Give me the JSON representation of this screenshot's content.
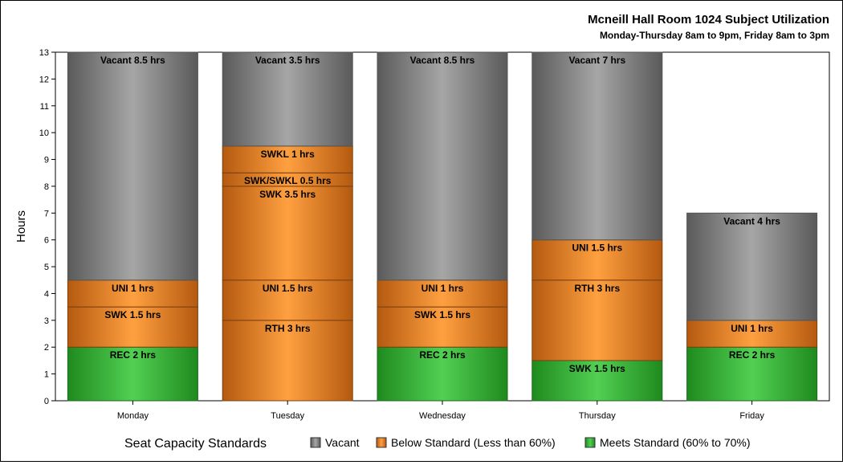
{
  "chart_data": {
    "type": "bar",
    "stacked": true,
    "title": "Mcneill Hall Room 1024 Subject Utilization",
    "subtitle": "Monday-Thursday 8am to 9pm, Friday 8am to 3pm",
    "xlabel": "",
    "ylabel": "Hours",
    "ylim": [
      0,
      13
    ],
    "yticks": [
      "0",
      "1",
      "2",
      "3",
      "4",
      "5",
      "6",
      "7",
      "8",
      "9",
      "10",
      "11",
      "12",
      "13"
    ],
    "categories": [
      "Monday",
      "Tuesday",
      "Wednesday",
      "Thursday",
      "Friday"
    ],
    "bars": [
      {
        "category": "Monday",
        "segments": [
          {
            "label": "REC 2 hrs",
            "value": 2,
            "standard": "meets"
          },
          {
            "label": "SWK 1.5 hrs",
            "value": 1.5,
            "standard": "below"
          },
          {
            "label": "UNI 1 hrs",
            "value": 1,
            "standard": "below"
          },
          {
            "label": "Vacant 8.5 hrs",
            "value": 8.5,
            "standard": "vacant"
          }
        ]
      },
      {
        "category": "Tuesday",
        "segments": [
          {
            "label": "RTH 3 hrs",
            "value": 3,
            "standard": "below"
          },
          {
            "label": "UNI 1.5 hrs",
            "value": 1.5,
            "standard": "below"
          },
          {
            "label": "SWK 3.5 hrs",
            "value": 3.5,
            "standard": "below"
          },
          {
            "label": "SWK/SWKL 0.5 hrs",
            "value": 0.5,
            "standard": "below"
          },
          {
            "label": "SWKL 1 hrs",
            "value": 1,
            "standard": "below"
          },
          {
            "label": "Vacant 3.5 hrs",
            "value": 3.5,
            "standard": "vacant"
          }
        ]
      },
      {
        "category": "Wednesday",
        "segments": [
          {
            "label": "REC 2 hrs",
            "value": 2,
            "standard": "meets"
          },
          {
            "label": "SWK 1.5 hrs",
            "value": 1.5,
            "standard": "below"
          },
          {
            "label": "UNI 1 hrs",
            "value": 1,
            "standard": "below"
          },
          {
            "label": "Vacant 8.5 hrs",
            "value": 8.5,
            "standard": "vacant"
          }
        ]
      },
      {
        "category": "Thursday",
        "segments": [
          {
            "label": "SWK 1.5 hrs",
            "value": 1.5,
            "standard": "meets"
          },
          {
            "label": "RTH 3 hrs",
            "value": 3,
            "standard": "below"
          },
          {
            "label": "UNI 1.5 hrs",
            "value": 1.5,
            "standard": "below"
          },
          {
            "label": "Vacant 7 hrs",
            "value": 7,
            "standard": "vacant"
          }
        ]
      },
      {
        "category": "Friday",
        "segments": [
          {
            "label": "REC 2 hrs",
            "value": 2,
            "standard": "meets"
          },
          {
            "label": "UNI 1 hrs",
            "value": 1,
            "standard": "below"
          },
          {
            "label": "Vacant 4 hrs",
            "value": 4,
            "standard": "vacant"
          }
        ]
      }
    ],
    "legend": {
      "title": "Seat Capacity Standards",
      "placement": "bottom",
      "items": [
        {
          "key": "vacant",
          "label": "Vacant",
          "color": "#9c9c9c"
        },
        {
          "key": "below",
          "label": "Below Standard (Less than 60%)",
          "color": "#f59a3c"
        },
        {
          "key": "meets",
          "label": "Meets Standard (60% to 70%)",
          "color": "#4cc84c"
        }
      ]
    },
    "colors": {
      "vacant": {
        "mid": "#a6a6a6",
        "edge": "#5a5a5a",
        "border": "#555555"
      },
      "below": {
        "mid": "#ffa040",
        "edge": "#b45a10",
        "border": "#7a4010"
      },
      "meets": {
        "mid": "#52d052",
        "edge": "#1f8a1f",
        "border": "#1a6a1a"
      }
    },
    "grid": false
  }
}
